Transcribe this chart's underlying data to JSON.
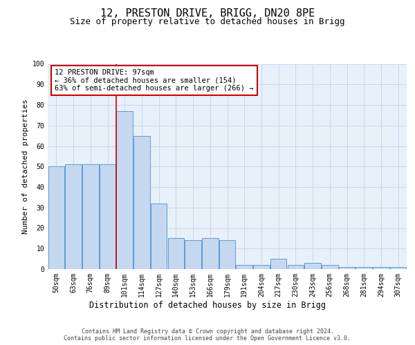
{
  "title": "12, PRESTON DRIVE, BRIGG, DN20 8PE",
  "subtitle": "Size of property relative to detached houses in Brigg",
  "xlabel": "Distribution of detached houses by size in Brigg",
  "ylabel": "Number of detached properties",
  "categories": [
    "50sqm",
    "63sqm",
    "76sqm",
    "89sqm",
    "101sqm",
    "114sqm",
    "127sqm",
    "140sqm",
    "153sqm",
    "166sqm",
    "179sqm",
    "191sqm",
    "204sqm",
    "217sqm",
    "230sqm",
    "243sqm",
    "256sqm",
    "268sqm",
    "281sqm",
    "294sqm",
    "307sqm"
  ],
  "values": [
    50,
    51,
    51,
    51,
    77,
    65,
    32,
    15,
    14,
    15,
    14,
    2,
    2,
    5,
    2,
    3,
    2,
    1,
    1,
    1,
    1
  ],
  "bar_color": "#c5d8f0",
  "bar_edge_color": "#5b9bd5",
  "grid_color": "#c8d8ed",
  "background_color": "#e8f0fa",
  "marker_index": 4,
  "marker_color": "#cc0000",
  "annotation_text": "12 PRESTON DRIVE: 97sqm\n← 36% of detached houses are smaller (154)\n63% of semi-detached houses are larger (266) →",
  "annotation_box_color": "#cc0000",
  "footer": "Contains HM Land Registry data © Crown copyright and database right 2024.\nContains public sector information licensed under the Open Government Licence v3.0.",
  "ylim": [
    0,
    100
  ],
  "title_fontsize": 11,
  "subtitle_fontsize": 9,
  "ylabel_fontsize": 8,
  "xlabel_fontsize": 8.5,
  "tick_fontsize": 7,
  "annotation_fontsize": 7.5,
  "footer_fontsize": 6
}
